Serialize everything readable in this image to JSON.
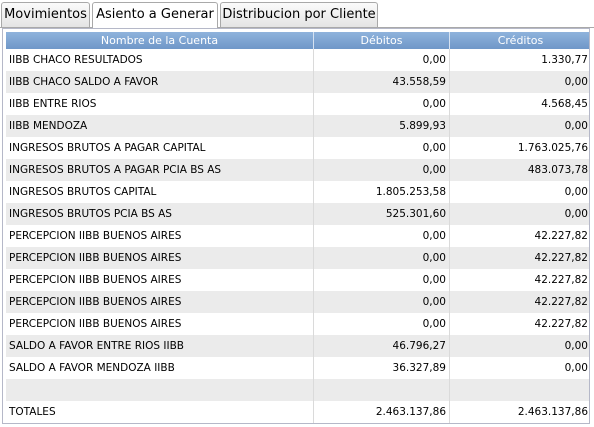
{
  "tabs": [
    {
      "label": "Movimientos"
    },
    {
      "label": "Asiento a Generar"
    },
    {
      "label": "Distribucion por Cliente"
    }
  ],
  "active_tab": 1,
  "table": {
    "headers": [
      "Nombre de la Cuenta",
      "Débitos",
      "Créditos"
    ],
    "rows": [
      {
        "cuenta": "IIBB CHACO RESULTADOS",
        "debitos": "0,00",
        "creditos": "1.330,77"
      },
      {
        "cuenta": "IIBB CHACO SALDO A FAVOR",
        "debitos": "43.558,59",
        "creditos": "0,00"
      },
      {
        "cuenta": "IIBB ENTRE RIOS",
        "debitos": "0,00",
        "creditos": "4.568,45"
      },
      {
        "cuenta": "IIBB MENDOZA",
        "debitos": "5.899,93",
        "creditos": "0,00"
      },
      {
        "cuenta": "INGRESOS BRUTOS A PAGAR CAPITAL",
        "debitos": "0,00",
        "creditos": "1.763.025,76"
      },
      {
        "cuenta": "INGRESOS BRUTOS A PAGAR PCIA BS AS",
        "debitos": "0,00",
        "creditos": "483.073,78"
      },
      {
        "cuenta": "INGRESOS BRUTOS CAPITAL",
        "debitos": "1.805.253,58",
        "creditos": "0,00"
      },
      {
        "cuenta": "INGRESOS BRUTOS PCIA BS AS",
        "debitos": "525.301,60",
        "creditos": "0,00"
      },
      {
        "cuenta": "PERCEPCION IIBB BUENOS AIRES",
        "debitos": "0,00",
        "creditos": "42.227,82"
      },
      {
        "cuenta": "PERCEPCION IIBB BUENOS AIRES",
        "debitos": "0,00",
        "creditos": "42.227,82"
      },
      {
        "cuenta": "PERCEPCION IIBB BUENOS AIRES",
        "debitos": "0,00",
        "creditos": "42.227,82"
      },
      {
        "cuenta": "PERCEPCION IIBB BUENOS AIRES",
        "debitos": "0,00",
        "creditos": "42.227,82"
      },
      {
        "cuenta": "PERCEPCION IIBB BUENOS AIRES",
        "debitos": "0,00",
        "creditos": "42.227,82"
      },
      {
        "cuenta": "SALDO A FAVOR ENTRE RIOS IIBB",
        "debitos": "46.796,27",
        "creditos": "0,00"
      },
      {
        "cuenta": "SALDO A FAVOR MENDOZA IIBB",
        "debitos": "36.327,89",
        "creditos": "0,00"
      },
      {
        "cuenta": "",
        "debitos": "",
        "creditos": ""
      },
      {
        "cuenta": "TOTALES",
        "debitos": "2.463.137,86",
        "creditos": "2.463.137,86"
      }
    ]
  }
}
